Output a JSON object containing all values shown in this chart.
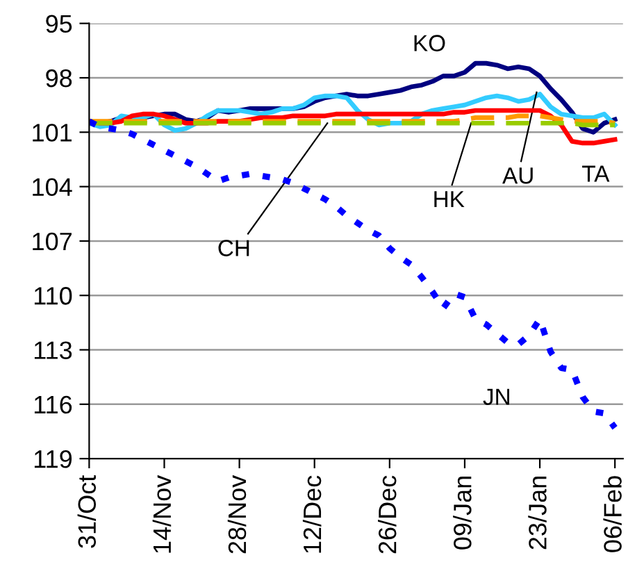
{
  "chart_data": {
    "type": "line",
    "categories": [
      "31/Oct",
      null,
      null,
      null,
      null,
      null,
      null,
      "14/Nov",
      null,
      null,
      null,
      null,
      null,
      null,
      "28/Nov",
      null,
      null,
      null,
      null,
      null,
      null,
      "12/Dec",
      null,
      null,
      null,
      null,
      null,
      null,
      "26/Dec",
      null,
      null,
      null,
      null,
      null,
      null,
      "09/Jan",
      null,
      null,
      null,
      null,
      null,
      null,
      "23/Jan",
      null,
      null,
      null,
      null,
      null,
      null,
      "06/Feb"
    ],
    "series": [
      {
        "name": "KO",
        "color": "#000080",
        "line_style": "solid",
        "values": [
          100.4,
          100.5,
          100.4,
          100.2,
          100.3,
          100.2,
          100.1,
          100.0,
          100.0,
          100.3,
          100.4,
          100.2,
          99.8,
          99.9,
          99.8,
          99.7,
          99.7,
          99.7,
          99.7,
          99.7,
          99.6,
          99.3,
          99.1,
          99.0,
          98.9,
          99.0,
          99.0,
          98.9,
          98.8,
          98.7,
          98.5,
          98.4,
          98.2,
          97.9,
          97.9,
          97.7,
          97.2,
          97.2,
          97.3,
          97.5,
          97.4,
          97.5,
          97.9,
          98.6,
          99.2,
          99.9,
          100.8,
          101.0,
          100.5,
          100.3
        ]
      },
      {
        "name": "AU",
        "color": "#33ccff",
        "line_style": "solid",
        "values": [
          100.5,
          100.7,
          100.6,
          100.1,
          100.2,
          100.2,
          100.0,
          100.6,
          100.9,
          100.8,
          100.5,
          100.1,
          99.8,
          99.8,
          99.8,
          99.9,
          100.0,
          99.9,
          99.7,
          99.7,
          99.5,
          99.1,
          99.0,
          99.0,
          99.1,
          99.8,
          100.3,
          100.6,
          100.5,
          100.5,
          100.4,
          100.0,
          99.8,
          99.7,
          99.6,
          99.5,
          99.3,
          99.1,
          99.0,
          99.1,
          99.3,
          99.2,
          98.9,
          99.6,
          100.0,
          100.1,
          100.2,
          100.2,
          100.0,
          100.6
        ]
      },
      {
        "name": "TA",
        "color": "#ff0000",
        "line_style": "solid",
        "values": [
          100.4,
          100.5,
          100.5,
          100.4,
          100.1,
          100.0,
          100.0,
          100.1,
          100.3,
          100.5,
          100.5,
          100.5,
          100.4,
          100.4,
          100.4,
          100.3,
          100.2,
          100.2,
          100.2,
          100.1,
          100.1,
          100.1,
          100.1,
          100.0,
          100.0,
          100.0,
          100.0,
          100.0,
          100.0,
          100.0,
          100.0,
          100.0,
          100.0,
          100.0,
          99.9,
          99.9,
          99.8,
          99.8,
          99.8,
          99.8,
          99.8,
          99.8,
          99.8,
          100.1,
          100.6,
          101.5,
          101.6,
          101.6,
          101.5,
          101.4
        ]
      },
      {
        "name": "HK",
        "color": "#ff9900",
        "line_style": "dashed",
        "values": [
          100.4,
          100.4,
          100.4,
          100.4,
          100.4,
          100.4,
          100.4,
          100.4,
          100.4,
          100.4,
          100.4,
          100.4,
          100.4,
          100.4,
          100.4,
          100.4,
          100.4,
          100.4,
          100.4,
          100.4,
          100.4,
          100.4,
          100.4,
          100.4,
          100.4,
          100.4,
          100.4,
          100.4,
          100.4,
          100.4,
          100.4,
          100.4,
          100.4,
          100.4,
          100.4,
          100.3,
          100.2,
          100.2,
          100.2,
          100.2,
          100.1,
          100.1,
          100.1,
          100.2,
          100.3,
          100.4,
          100.4,
          100.4,
          100.4,
          100.5
        ]
      },
      {
        "name": "CH",
        "color": "#99cc00",
        "line_style": "dashed",
        "values": [
          100.5,
          100.5,
          100.5,
          100.5,
          100.5,
          100.5,
          100.5,
          100.5,
          100.5,
          100.5,
          100.5,
          100.5,
          100.5,
          100.5,
          100.5,
          100.5,
          100.5,
          100.5,
          100.5,
          100.5,
          100.5,
          100.5,
          100.5,
          100.5,
          100.5,
          100.5,
          100.5,
          100.5,
          100.5,
          100.5,
          100.5,
          100.5,
          100.5,
          100.5,
          100.5,
          100.5,
          100.5,
          100.5,
          100.5,
          100.5,
          100.5,
          100.5,
          100.5,
          100.5,
          100.5,
          100.5,
          100.6,
          100.6,
          100.6,
          100.6
        ]
      },
      {
        "name": "JN",
        "color": "#0000ff",
        "line_style": "dotted",
        "values": [
          100.4,
          100.7,
          100.8,
          100.9,
          101.1,
          101.4,
          101.7,
          102.0,
          102.3,
          102.6,
          102.9,
          103.3,
          103.7,
          103.5,
          103.4,
          103.3,
          103.4,
          103.5,
          103.6,
          103.8,
          104.1,
          104.4,
          104.7,
          105.1,
          105.6,
          106.0,
          106.4,
          106.7,
          107.4,
          107.9,
          108.3,
          109.0,
          109.8,
          110.7,
          109.9,
          110.1,
          111.3,
          111.6,
          112.1,
          112.6,
          112.7,
          112.2,
          111.3,
          113.1,
          114.0,
          114.1,
          115.6,
          116.4,
          116.5,
          117.3
        ]
      }
    ],
    "ylim": [
      119,
      95
    ],
    "yticks": [
      95,
      98,
      101,
      104,
      107,
      110,
      113,
      116,
      119
    ],
    "grid": "y",
    "legend": false
  }
}
